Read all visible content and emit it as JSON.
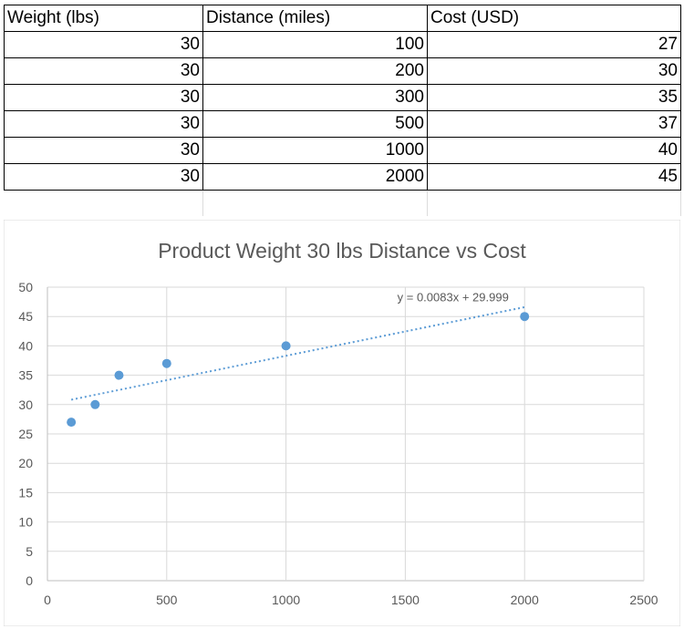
{
  "table": {
    "headers": [
      "Weight (lbs)",
      "Distance (miles)",
      "Cost (USD)"
    ],
    "rows": [
      [
        "30",
        "100",
        "27"
      ],
      [
        "30",
        "200",
        "30"
      ],
      [
        "30",
        "300",
        "35"
      ],
      [
        "30",
        "500",
        "37"
      ],
      [
        "30",
        "1000",
        "40"
      ],
      [
        "30",
        "2000",
        "45"
      ]
    ]
  },
  "chart_data": {
    "type": "scatter",
    "title": "Product Weight 30 lbs Distance vs Cost",
    "xlabel": "",
    "ylabel": "",
    "x": [
      100,
      200,
      300,
      500,
      1000,
      2000
    ],
    "y": [
      27,
      30,
      35,
      37,
      40,
      45
    ],
    "xlim": [
      0,
      2500
    ],
    "ylim": [
      0,
      50
    ],
    "xticks": [
      0,
      500,
      1000,
      1500,
      2000,
      2500
    ],
    "yticks": [
      0,
      5,
      10,
      15,
      20,
      25,
      30,
      35,
      40,
      45,
      50
    ],
    "grid": true,
    "marker_color": "#5b9bd5",
    "trendline": {
      "type": "linear",
      "slope": 0.0083,
      "intercept": 29.999,
      "label": "y = 0.0083x + 29.999",
      "style": "dotted",
      "color": "#5b9bd5"
    }
  }
}
